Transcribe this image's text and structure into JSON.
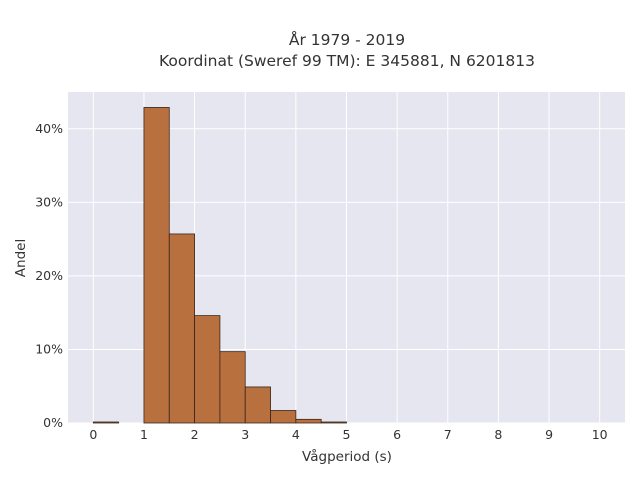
{
  "chart_data": {
    "type": "bar",
    "title_lines": [
      "År 1979 - 2019",
      "Koordinat (Sweref 99 TM): E 345881, N 6201813"
    ],
    "xlabel": "Vågperiod (s)",
    "ylabel": "Andel",
    "xlim": [
      -0.5,
      10.5
    ],
    "ylim": [
      0,
      0.45
    ],
    "x_ticks": [
      0,
      1,
      2,
      3,
      4,
      5,
      6,
      7,
      8,
      9,
      10
    ],
    "y_ticks": [
      0,
      0.1,
      0.2,
      0.3,
      0.4
    ],
    "y_tick_labels": [
      "0%",
      "10%",
      "20%",
      "30%",
      "40%"
    ],
    "bin_width": 0.5,
    "bins": [
      {
        "start": 0.0,
        "value": 0.0005
      },
      {
        "start": 0.5,
        "value": 0.0
      },
      {
        "start": 1.0,
        "value": 0.429
      },
      {
        "start": 1.5,
        "value": 0.257
      },
      {
        "start": 2.0,
        "value": 0.146
      },
      {
        "start": 2.5,
        "value": 0.097
      },
      {
        "start": 3.0,
        "value": 0.049
      },
      {
        "start": 3.5,
        "value": 0.017
      },
      {
        "start": 4.0,
        "value": 0.005
      },
      {
        "start": 4.5,
        "value": 0.001
      }
    ],
    "grid": true,
    "colors": {
      "bar_fill": "#b8703f",
      "bar_edge": "#3a2618",
      "plot_bg": "#e5e6ef",
      "grid": "#ffffff"
    }
  }
}
